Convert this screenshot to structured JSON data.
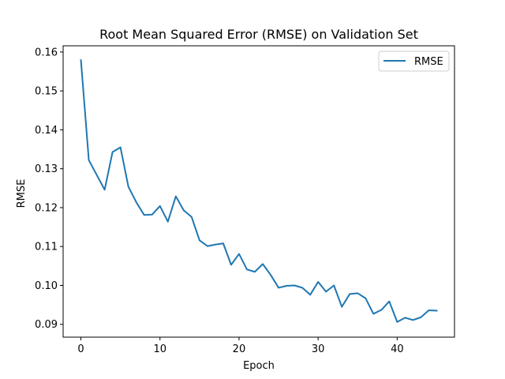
{
  "chart_data": {
    "type": "line",
    "title": "Root Mean Squared Error (RMSE) on Validation Set",
    "xlabel": "Epoch",
    "ylabel": "RMSE",
    "xlim": [
      -2.25,
      47.25
    ],
    "ylim": [
      0.0867,
      0.1616
    ],
    "xticks": [
      0,
      10,
      20,
      30,
      40
    ],
    "yticks": [
      0.09,
      0.1,
      0.11,
      0.12,
      0.13,
      0.14,
      0.15,
      0.16
    ],
    "ytick_labels": [
      "0.09",
      "0.10",
      "0.11",
      "0.12",
      "0.13",
      "0.14",
      "0.15",
      "0.16"
    ],
    "grid": false,
    "legend_position": "top-right",
    "series": [
      {
        "name": "RMSE",
        "color": "#1f77b4",
        "x": [
          0,
          1,
          2,
          3,
          4,
          5,
          6,
          7,
          8,
          9,
          10,
          11,
          12,
          13,
          14,
          15,
          16,
          17,
          18,
          19,
          20,
          21,
          22,
          23,
          24,
          25,
          26,
          27,
          28,
          29,
          30,
          31,
          32,
          33,
          34,
          35,
          36,
          37,
          38,
          39,
          40,
          41,
          42,
          43,
          44,
          45
        ],
        "values": [
          0.1579,
          0.1322,
          0.1284,
          0.1246,
          0.1343,
          0.1355,
          0.1254,
          0.1214,
          0.1181,
          0.1182,
          0.1204,
          0.1164,
          0.1229,
          0.1193,
          0.1176,
          0.1116,
          0.1101,
          0.1105,
          0.1108,
          0.1053,
          0.1081,
          0.1041,
          0.1035,
          0.1055,
          0.1027,
          0.0994,
          0.0999,
          0.1,
          0.0994,
          0.0976,
          0.1009,
          0.0984,
          0.1,
          0.0945,
          0.0978,
          0.098,
          0.0967,
          0.0927,
          0.0937,
          0.0959,
          0.0906,
          0.0917,
          0.0911,
          0.0918,
          0.0936,
          0.0935
        ]
      }
    ]
  }
}
